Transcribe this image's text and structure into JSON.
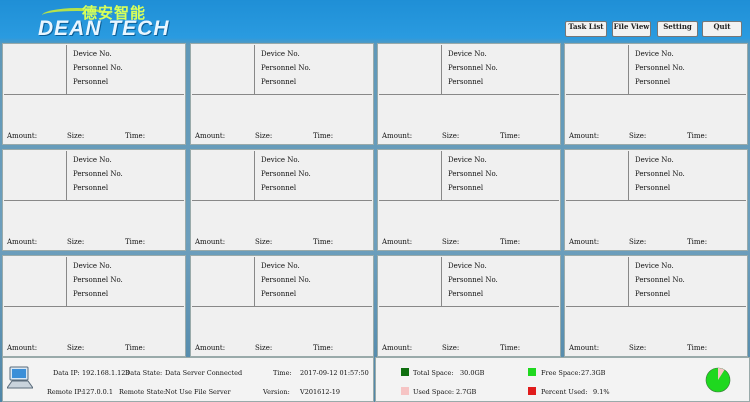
{
  "header": {
    "logo_cn": "德安智能",
    "logo_en": "DEAN TECH",
    "buttons": [
      "Task List",
      "File View",
      "Setting",
      "Quit"
    ]
  },
  "panel_labels": {
    "device": "Device No.",
    "personnel_no": "Personnel No.",
    "personnel": "Personnel",
    "amount": "Amount:",
    "size": "Size:",
    "time": "Time:"
  },
  "status": {
    "data_ip_label": "Data IP:",
    "data_ip": "192.168.1.123",
    "data_state_label": "Data State:",
    "data_state": "Data Server Connected",
    "time_label": "Time:",
    "time": "2017-09-12 01:57:50",
    "remote_ip_label": "Remote IP:",
    "remote_ip": "127.0.0.1",
    "remote_state_label": "Remote State:",
    "remote_state": "Not Use File Server",
    "version_label": "Version:",
    "version": "V201612-19",
    "total_label": "Total Space:",
    "total": "30.0GB",
    "free_label": "Free Space:",
    "free": "27.3GB",
    "used_label": "Used Space:",
    "used": "2.7GB",
    "percent_label": "Percent Used:",
    "percent": "9.1%",
    "percent_value": 9.1,
    "colors": {
      "total": "#0f6e0f",
      "free": "#1fd81f",
      "used": "#f6c4c4",
      "percent": "#e01b1b"
    }
  },
  "icons": {
    "computer": "computer-icon",
    "disk": "disk-usage-pie-icon"
  }
}
